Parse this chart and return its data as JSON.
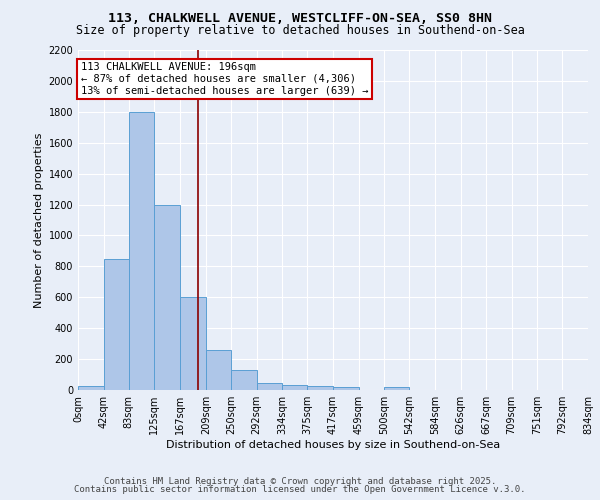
{
  "title1": "113, CHALKWELL AVENUE, WESTCLIFF-ON-SEA, SS0 8HN",
  "title2": "Size of property relative to detached houses in Southend-on-Sea",
  "xlabel": "Distribution of detached houses by size in Southend-on-Sea",
  "ylabel": "Number of detached properties",
  "bin_edges": [
    0,
    42,
    83,
    125,
    167,
    209,
    250,
    292,
    334,
    375,
    417,
    459,
    500,
    542,
    584,
    626,
    667,
    709,
    751,
    792,
    834
  ],
  "bar_heights": [
    25,
    845,
    1800,
    1200,
    600,
    260,
    130,
    45,
    35,
    25,
    20,
    0,
    20,
    0,
    0,
    0,
    0,
    0,
    0,
    0
  ],
  "bar_color": "#aec6e8",
  "bar_edge_color": "#5a9fd4",
  "bg_color": "#e8eef8",
  "grid_color": "#ffffff",
  "vline_x": 196,
  "vline_color": "#8b0000",
  "annotation_text": "113 CHALKWELL AVENUE: 196sqm\n← 87% of detached houses are smaller (4,306)\n13% of semi-detached houses are larger (639) →",
  "annotation_box_color": "#ffffff",
  "annotation_box_edge": "#cc0000",
  "ylim": [
    0,
    2200
  ],
  "yticks": [
    0,
    200,
    400,
    600,
    800,
    1000,
    1200,
    1400,
    1600,
    1800,
    2000,
    2200
  ],
  "tick_labels": [
    "0sqm",
    "42sqm",
    "83sqm",
    "125sqm",
    "167sqm",
    "209sqm",
    "250sqm",
    "292sqm",
    "334sqm",
    "375sqm",
    "417sqm",
    "459sqm",
    "500sqm",
    "542sqm",
    "584sqm",
    "626sqm",
    "667sqm",
    "709sqm",
    "751sqm",
    "792sqm",
    "834sqm"
  ],
  "footer1": "Contains HM Land Registry data © Crown copyright and database right 2025.",
  "footer2": "Contains public sector information licensed under the Open Government Licence v.3.0.",
  "title_fontsize": 9.5,
  "subtitle_fontsize": 8.5,
  "axis_label_fontsize": 8,
  "tick_fontsize": 7,
  "annotation_fontsize": 7.5,
  "footer_fontsize": 6.5
}
